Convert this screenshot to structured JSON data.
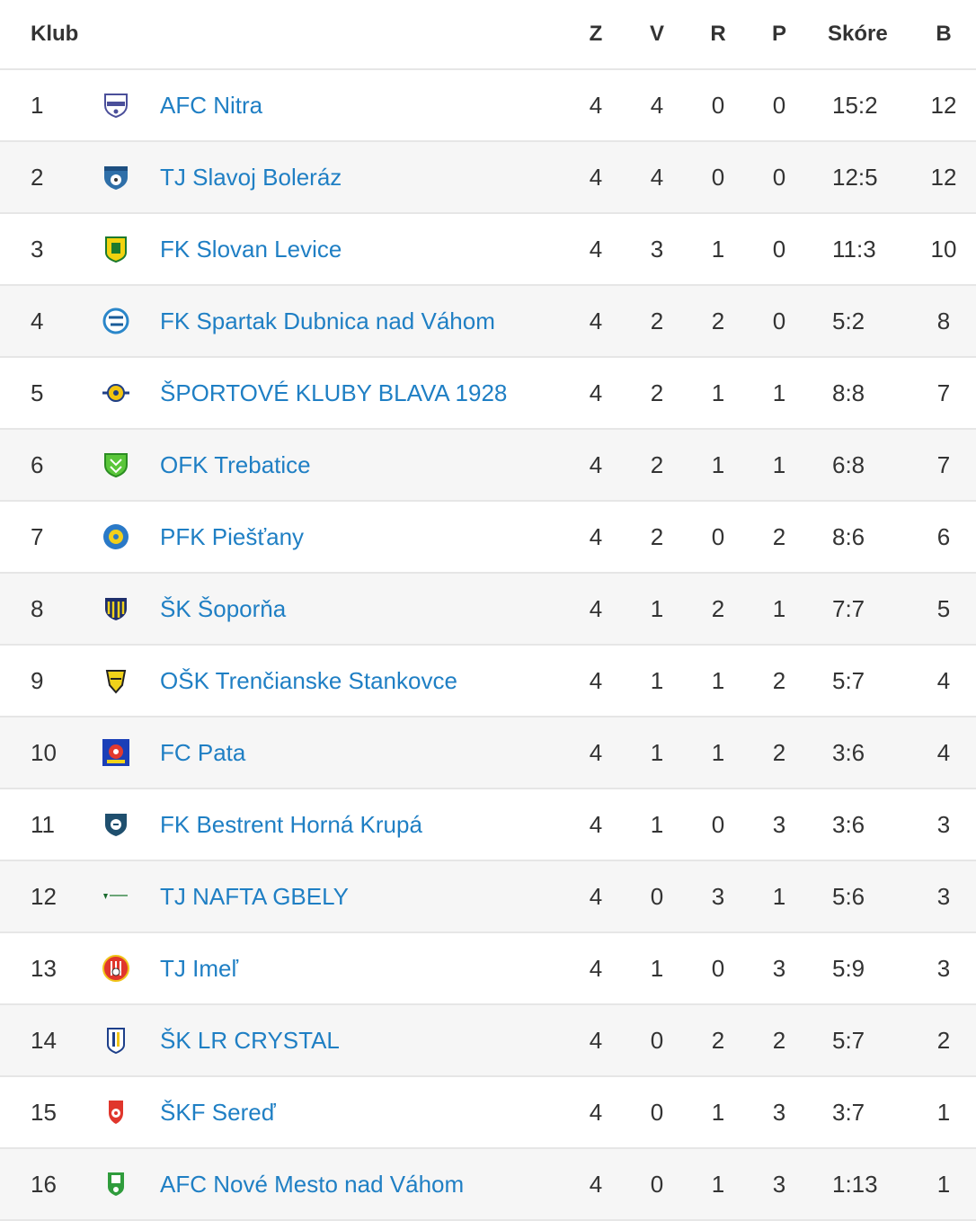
{
  "header": {
    "klub": "Klub",
    "z": "Z",
    "v": "V",
    "r": "R",
    "p": "P",
    "score": "Skóre",
    "points": "B"
  },
  "rows": [
    {
      "rank": "1",
      "name": "AFC Nitra",
      "logo_icon": "afc-nitra-crest-icon",
      "z": "4",
      "v": "4",
      "r": "0",
      "p": "0",
      "score": "15:2",
      "points": "12"
    },
    {
      "rank": "2",
      "name": "TJ Slavoj Boleráz",
      "logo_icon": "slavoj-boleraz-crest-icon",
      "z": "4",
      "v": "4",
      "r": "0",
      "p": "0",
      "score": "12:5",
      "points": "12"
    },
    {
      "rank": "3",
      "name": "FK Slovan Levice",
      "logo_icon": "slovan-levice-crest-icon",
      "z": "4",
      "v": "3",
      "r": "1",
      "p": "0",
      "score": "11:3",
      "points": "10"
    },
    {
      "rank": "4",
      "name": "FK Spartak Dubnica nad Váhom",
      "logo_icon": "spartak-dubnica-crest-icon",
      "z": "4",
      "v": "2",
      "r": "2",
      "p": "0",
      "score": "5:2",
      "points": "8"
    },
    {
      "rank": "5",
      "name": "ŠPORTOVÉ KLUBY BLAVA 1928",
      "logo_icon": "blava-1928-crest-icon",
      "z": "4",
      "v": "2",
      "r": "1",
      "p": "1",
      "score": "8:8",
      "points": "7"
    },
    {
      "rank": "6",
      "name": "OFK Trebatice",
      "logo_icon": "ofk-trebatice-crest-icon",
      "z": "4",
      "v": "2",
      "r": "1",
      "p": "1",
      "score": "6:8",
      "points": "7"
    },
    {
      "rank": "7",
      "name": "PFK Piešťany",
      "logo_icon": "pfk-piestany-crest-icon",
      "z": "4",
      "v": "2",
      "r": "0",
      "p": "2",
      "score": "8:6",
      "points": "6"
    },
    {
      "rank": "8",
      "name": "ŠK Šoporňa",
      "logo_icon": "sk-soporna-crest-icon",
      "z": "4",
      "v": "1",
      "r": "2",
      "p": "1",
      "score": "7:7",
      "points": "5"
    },
    {
      "rank": "9",
      "name": "OŠK Trenčianske Stankovce",
      "logo_icon": "osk-stankovce-crest-icon",
      "z": "4",
      "v": "1",
      "r": "1",
      "p": "2",
      "score": "5:7",
      "points": "4"
    },
    {
      "rank": "10",
      "name": "FC Pata",
      "logo_icon": "fc-pata-crest-icon",
      "z": "4",
      "v": "1",
      "r": "1",
      "p": "2",
      "score": "3:6",
      "points": "4"
    },
    {
      "rank": "11",
      "name": "FK Bestrent Horná Krupá",
      "logo_icon": "bestrent-horna-krupa-crest-icon",
      "z": "4",
      "v": "1",
      "r": "0",
      "p": "3",
      "score": "3:6",
      "points": "3"
    },
    {
      "rank": "12",
      "name": "TJ NAFTA GBELY",
      "logo_icon": "nafta-gbely-crest-icon",
      "z": "4",
      "v": "0",
      "r": "3",
      "p": "1",
      "score": "5:6",
      "points": "3"
    },
    {
      "rank": "13",
      "name": "TJ Imeľ",
      "logo_icon": "tj-imel-crest-icon",
      "z": "4",
      "v": "1",
      "r": "0",
      "p": "3",
      "score": "5:9",
      "points": "3"
    },
    {
      "rank": "14",
      "name": "ŠK LR CRYSTAL",
      "logo_icon": "lr-crystal-crest-icon",
      "z": "4",
      "v": "0",
      "r": "2",
      "p": "2",
      "score": "5:7",
      "points": "2"
    },
    {
      "rank": "15",
      "name": "ŠKF Sereď",
      "logo_icon": "skf-sered-crest-icon",
      "z": "4",
      "v": "0",
      "r": "1",
      "p": "3",
      "score": "3:7",
      "points": "1"
    },
    {
      "rank": "16",
      "name": "AFC Nové Mesto nad Váhom",
      "logo_icon": "afc-nove-mesto-crest-icon",
      "z": "4",
      "v": "0",
      "r": "1",
      "p": "3",
      "score": "1:13",
      "points": "1"
    }
  ]
}
